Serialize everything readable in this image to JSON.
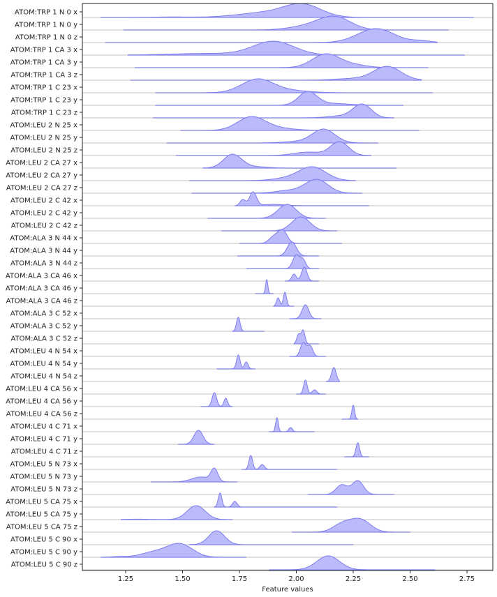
{
  "chart_data": {
    "type": "ridgeline",
    "xlabel": "Feature values",
    "xlim": [
      1.06,
      2.87
    ],
    "xticks": [
      "1.25",
      "1.50",
      "1.75",
      "2.00",
      "2.25",
      "2.50",
      "2.75"
    ],
    "fill_color": "#b4b4fb",
    "line_color": "#7c7cf0",
    "baseline_color": "#e0e0e0",
    "rows": [
      {
        "label": "ATOM:TRP 1 N 0 x",
        "range": [
          1.14,
          2.78
        ],
        "peaks": [
          [
            2.03,
            0.08,
            1
          ],
          [
            1.88,
            0.13,
            0.45
          ],
          [
            1.45,
            0.08,
            0.04
          ]
        ]
      },
      {
        "label": "ATOM:TRP 1 N 0 y",
        "range": [
          1.24,
          2.67
        ],
        "peaks": [
          [
            2.17,
            0.07,
            1
          ],
          [
            2.05,
            0.08,
            0.3
          ]
        ]
      },
      {
        "label": "ATOM:TRP 1 N 0 z",
        "range": [
          1.16,
          2.62
        ],
        "peaks": [
          [
            2.35,
            0.08,
            1
          ],
          [
            2.55,
            0.04,
            0.12
          ]
        ]
      },
      {
        "label": "ATOM:TRP 1 CA 3 x",
        "range": [
          1.26,
          2.74
        ],
        "peaks": [
          [
            1.9,
            0.09,
            1
          ],
          [
            1.6,
            0.15,
            0.12
          ]
        ]
      },
      {
        "label": "ATOM:TRP 1 CA 3 y",
        "range": [
          1.29,
          2.58
        ],
        "peaks": [
          [
            2.13,
            0.06,
            1
          ],
          [
            2.25,
            0.06,
            0.2
          ]
        ]
      },
      {
        "label": "ATOM:TRP 1 CA 3 z",
        "range": [
          1.27,
          2.55
        ],
        "peaks": [
          [
            2.4,
            0.06,
            1
          ],
          [
            2.25,
            0.08,
            0.12
          ]
        ]
      },
      {
        "label": "ATOM:TRP 1 C 23 x",
        "range": [
          1.38,
          2.6
        ],
        "peaks": [
          [
            1.83,
            0.07,
            1
          ],
          [
            1.98,
            0.08,
            0.15
          ]
        ]
      },
      {
        "label": "ATOM:TRP 1 C 23 y",
        "range": [
          1.38,
          2.47
        ],
        "peaks": [
          [
            2.05,
            0.04,
            1
          ],
          [
            2.15,
            0.08,
            0.15
          ]
        ]
      },
      {
        "label": "ATOM:TRP 1 C 23 z",
        "range": [
          1.37,
          2.43
        ],
        "peaks": [
          [
            2.29,
            0.04,
            1
          ],
          [
            2.2,
            0.06,
            0.15
          ]
        ]
      },
      {
        "label": "ATOM:LEU 2 N 25 x",
        "range": [
          1.49,
          2.54
        ],
        "peaks": [
          [
            1.8,
            0.06,
            1
          ],
          [
            1.9,
            0.08,
            0.2
          ]
        ]
      },
      {
        "label": "ATOM:LEU 2 N 25 y",
        "range": [
          1.43,
          2.36
        ],
        "peaks": [
          [
            2.12,
            0.05,
            1
          ],
          [
            2.0,
            0.06,
            0.1
          ]
        ]
      },
      {
        "label": "ATOM:LEU 2 N 25 z",
        "range": [
          1.47,
          2.33
        ],
        "peaks": [
          [
            2.19,
            0.04,
            1
          ],
          [
            2.05,
            0.06,
            0.25
          ]
        ]
      },
      {
        "label": "ATOM:LEU 2 CA 27 x",
        "range": [
          1.59,
          2.44
        ],
        "peaks": [
          [
            1.72,
            0.04,
            1
          ],
          [
            1.82,
            0.05,
            0.1
          ]
        ]
      },
      {
        "label": "ATOM:LEU 2 CA 27 y",
        "range": [
          1.53,
          2.26
        ],
        "peaks": [
          [
            2.07,
            0.06,
            1
          ],
          [
            1.95,
            0.06,
            0.15
          ]
        ]
      },
      {
        "label": "ATOM:LEU 2 CA 27 z",
        "range": [
          1.54,
          2.29
        ],
        "peaks": [
          [
            2.09,
            0.05,
            1
          ],
          [
            1.97,
            0.06,
            0.2
          ]
        ]
      },
      {
        "label": "ATOM:LEU 2 C 42 x",
        "range": [
          1.73,
          2.32
        ],
        "peaks": [
          [
            1.81,
            0.015,
            1
          ],
          [
            1.765,
            0.012,
            0.45
          ],
          [
            1.9,
            0.05,
            0.1
          ]
        ]
      },
      {
        "label": "ATOM:LEU 2 C 42 y",
        "range": [
          1.61,
          2.13
        ],
        "peaks": [
          [
            1.96,
            0.04,
            1
          ]
        ]
      },
      {
        "label": "ATOM:LEU 2 C 42 z",
        "range": [
          1.67,
          2.18
        ],
        "peaks": [
          [
            2.02,
            0.04,
            1
          ]
        ]
      },
      {
        "label": "ATOM:ALA 3 N 44 x",
        "range": [
          1.75,
          2.2
        ],
        "peaks": [
          [
            1.94,
            0.02,
            1
          ],
          [
            1.9,
            0.02,
            0.5
          ]
        ]
      },
      {
        "label": "ATOM:ALA 3 N 44 y",
        "range": [
          1.74,
          2.1
        ],
        "peaks": [
          [
            1.98,
            0.02,
            1
          ]
        ]
      },
      {
        "label": "ATOM:ALA 3 N 44 z",
        "range": [
          1.78,
          2.1
        ],
        "peaks": [
          [
            2.0,
            0.015,
            1
          ],
          [
            2.03,
            0.012,
            0.6
          ]
        ]
      },
      {
        "label": "ATOM:ALA 3 CA 46 x",
        "range": [
          1.95,
          2.1
        ],
        "peaks": [
          [
            2.035,
            0.012,
            1
          ],
          [
            1.99,
            0.01,
            0.5
          ]
        ]
      },
      {
        "label": "ATOM:ALA 3 CA 46 y",
        "range": [
          1.82,
          1.9
        ],
        "peaks": [
          [
            1.87,
            0.005,
            1
          ]
        ]
      },
      {
        "label": "ATOM:ALA 3 CA 46 z",
        "range": [
          1.9,
          1.99
        ],
        "peaks": [
          [
            1.95,
            0.007,
            1
          ],
          [
            1.92,
            0.007,
            0.6
          ]
        ]
      },
      {
        "label": "ATOM:ALA 3 C 52 x",
        "range": [
          1.97,
          2.11
        ],
        "peaks": [
          [
            2.04,
            0.015,
            1
          ]
        ]
      },
      {
        "label": "ATOM:ALA 3 C 52 y",
        "range": [
          1.72,
          1.86
        ],
        "peaks": [
          [
            1.745,
            0.008,
            1
          ]
        ]
      },
      {
        "label": "ATOM:ALA 3 C 52 z",
        "range": [
          1.99,
          2.1
        ],
        "peaks": [
          [
            2.03,
            0.008,
            1
          ],
          [
            2.01,
            0.008,
            0.7
          ]
        ]
      },
      {
        "label": "ATOM:LEU 4 N 54 x",
        "range": [
          1.97,
          2.13
        ],
        "peaks": [
          [
            2.03,
            0.012,
            1
          ],
          [
            2.06,
            0.012,
            0.8
          ]
        ]
      },
      {
        "label": "ATOM:LEU 4 N 54 y",
        "range": [
          1.65,
          1.82
        ],
        "peaks": [
          [
            1.745,
            0.008,
            1
          ],
          [
            1.78,
            0.008,
            0.5
          ]
        ]
      },
      {
        "label": "ATOM:LEU 4 N 54 z",
        "range": [
          2.13,
          2.19
        ],
        "peaks": [
          [
            2.165,
            0.01,
            1
          ]
        ]
      },
      {
        "label": "ATOM:LEU 4 CA 56 x",
        "range": [
          2.0,
          2.13
        ],
        "peaks": [
          [
            2.04,
            0.008,
            1
          ],
          [
            2.08,
            0.01,
            0.3
          ]
        ]
      },
      {
        "label": "ATOM:LEU 4 CA 56 y",
        "range": [
          1.58,
          1.72
        ],
        "peaks": [
          [
            1.64,
            0.01,
            1
          ],
          [
            1.69,
            0.008,
            0.6
          ]
        ]
      },
      {
        "label": "ATOM:LEU 4 CA 56 z",
        "range": [
          2.2,
          2.27
        ],
        "peaks": [
          [
            2.25,
            0.006,
            1
          ]
        ]
      },
      {
        "label": "ATOM:LEU 4 C 71 x",
        "range": [
          1.88,
          2.08
        ],
        "peaks": [
          [
            1.915,
            0.006,
            1
          ],
          [
            1.975,
            0.008,
            0.3
          ]
        ]
      },
      {
        "label": "ATOM:LEU 4 C 71 y",
        "range": [
          1.48,
          1.64
        ],
        "peaks": [
          [
            1.57,
            0.02,
            1
          ]
        ]
      },
      {
        "label": "ATOM:LEU 4 C 71 z",
        "range": [
          2.21,
          2.32
        ],
        "peaks": [
          [
            2.27,
            0.008,
            1
          ]
        ]
      },
      {
        "label": "ATOM:LEU 5 N 73 x",
        "range": [
          1.76,
          2.18
        ],
        "peaks": [
          [
            1.8,
            0.008,
            1
          ],
          [
            1.85,
            0.01,
            0.35
          ]
        ]
      },
      {
        "label": "ATOM:LEU 5 N 73 y",
        "range": [
          1.36,
          1.74
        ],
        "peaks": [
          [
            1.64,
            0.015,
            1
          ],
          [
            1.58,
            0.04,
            0.4
          ]
        ]
      },
      {
        "label": "ATOM:LEU 5 N 73 z",
        "range": [
          2.05,
          2.43
        ],
        "peaks": [
          [
            2.27,
            0.025,
            1
          ],
          [
            2.2,
            0.025,
            0.7
          ]
        ]
      },
      {
        "label": "ATOM:LEU 5 CA 75 x",
        "range": [
          1.64,
          2.18
        ],
        "peaks": [
          [
            1.665,
            0.008,
            1
          ],
          [
            1.73,
            0.01,
            0.4
          ]
        ]
      },
      {
        "label": "ATOM:LEU 5 CA 75 y",
        "range": [
          1.23,
          1.72
        ],
        "peaks": [
          [
            1.56,
            0.04,
            1
          ],
          [
            1.3,
            0.05,
            0.03
          ]
        ]
      },
      {
        "label": "ATOM:LEU 5 CA 75 z",
        "range": [
          1.98,
          2.5
        ],
        "peaks": [
          [
            2.28,
            0.045,
            1
          ],
          [
            2.2,
            0.04,
            0.6
          ]
        ]
      },
      {
        "label": "ATOM:LEU 5 C 90 x",
        "range": [
          1.53,
          2.25
        ],
        "peaks": [
          [
            1.65,
            0.035,
            1
          ]
        ]
      },
      {
        "label": "ATOM:LEU 5 C 90 y",
        "range": [
          1.14,
          1.78
        ],
        "peaks": [
          [
            1.49,
            0.055,
            1
          ],
          [
            1.38,
            0.06,
            0.4
          ],
          [
            1.22,
            0.03,
            0.05
          ]
        ]
      },
      {
        "label": "ATOM:LEU 5 C 90 z",
        "range": [
          1.88,
          2.61
        ],
        "peaks": [
          [
            2.14,
            0.05,
            1
          ]
        ]
      }
    ]
  }
}
